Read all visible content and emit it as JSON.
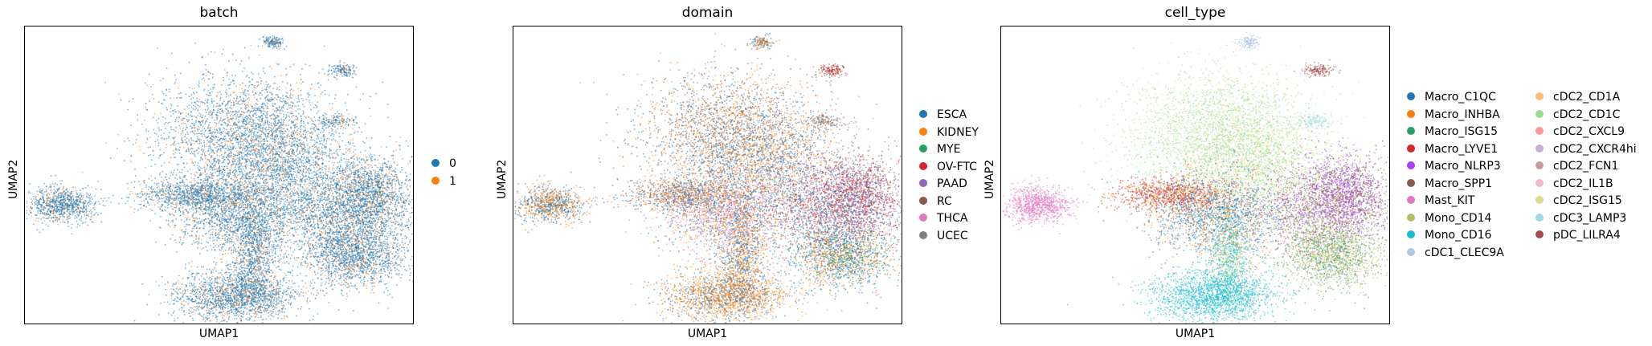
{
  "chart_data": [
    {
      "type": "scatter",
      "title": "batch",
      "xlabel": "UMAP1",
      "ylabel": "UMAP2",
      "legend": {
        "placement": "right",
        "entries": [
          {
            "label": "0",
            "color": "#1f77b4"
          },
          {
            "label": "1",
            "color": "#ff7f0e"
          }
        ]
      }
    },
    {
      "type": "scatter",
      "title": "domain",
      "xlabel": "UMAP1",
      "ylabel": "UMAP2",
      "legend": {
        "placement": "right",
        "entries": [
          {
            "label": "ESCA",
            "color": "#1f77b4"
          },
          {
            "label": "KIDNEY",
            "color": "#ff7f0e"
          },
          {
            "label": "MYE",
            "color": "#279e68"
          },
          {
            "label": "OV-FTC",
            "color": "#d62728"
          },
          {
            "label": "PAAD",
            "color": "#9467bd"
          },
          {
            "label": "RC",
            "color": "#8c564b"
          },
          {
            "label": "THCA",
            "color": "#e377c2"
          },
          {
            "label": "UCEC",
            "color": "#7f7f7f"
          }
        ]
      }
    },
    {
      "type": "scatter",
      "title": "cell_type",
      "xlabel": "UMAP1",
      "ylabel": "UMAP2",
      "legend": {
        "placement": "right",
        "columns": 2,
        "entries": [
          {
            "label": "Macro_C1QC",
            "color": "#1f77b4"
          },
          {
            "label": "Macro_INHBA",
            "color": "#ff7f0e"
          },
          {
            "label": "Macro_ISG15",
            "color": "#279e68"
          },
          {
            "label": "Macro_LYVE1",
            "color": "#d62728"
          },
          {
            "label": "Macro_NLRP3",
            "color": "#aa40fc"
          },
          {
            "label": "Macro_SPP1",
            "color": "#8c564b"
          },
          {
            "label": "Mast_KIT",
            "color": "#e377c2"
          },
          {
            "label": "Mono_CD14",
            "color": "#b5bd61"
          },
          {
            "label": "Mono_CD16",
            "color": "#17becf"
          },
          {
            "label": "cDC1_CLEC9A",
            "color": "#aec7e8"
          },
          {
            "label": "cDC2_CD1A",
            "color": "#ffbb78"
          },
          {
            "label": "cDC2_CD1C",
            "color": "#98df8a"
          },
          {
            "label": "cDC2_CXCL9",
            "color": "#ff9896"
          },
          {
            "label": "cDC2_CXCR4hi",
            "color": "#c5b0d5"
          },
          {
            "label": "cDC2_FCN1",
            "color": "#c49c94"
          },
          {
            "label": "cDC2_IL1B",
            "color": "#f7b6d2"
          },
          {
            "label": "cDC2_ISG15",
            "color": "#dbdb8d"
          },
          {
            "label": "cDC3_LAMP3",
            "color": "#9edae5"
          },
          {
            "label": "pDC_LILRA4",
            "color": "#ad494a"
          }
        ]
      }
    }
  ]
}
